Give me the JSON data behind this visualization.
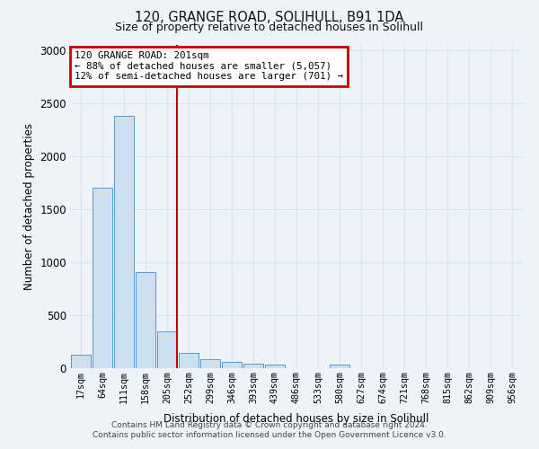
{
  "title1": "120, GRANGE ROAD, SOLIHULL, B91 1DA",
  "title2": "Size of property relative to detached houses in Solihull",
  "xlabel": "Distribution of detached houses by size in Solihull",
  "ylabel": "Number of detached properties",
  "bin_labels": [
    "17sqm",
    "64sqm",
    "111sqm",
    "158sqm",
    "205sqm",
    "252sqm",
    "299sqm",
    "346sqm",
    "393sqm",
    "439sqm",
    "486sqm",
    "533sqm",
    "580sqm",
    "627sqm",
    "674sqm",
    "721sqm",
    "768sqm",
    "815sqm",
    "862sqm",
    "909sqm",
    "956sqm"
  ],
  "bar_values": [
    130,
    1700,
    2380,
    910,
    350,
    145,
    85,
    60,
    45,
    30,
    0,
    0,
    30,
    0,
    0,
    0,
    0,
    0,
    0,
    0,
    0
  ],
  "bar_color": "#cce0f0",
  "bar_edge_color": "#5599cc",
  "vline_idx": 4,
  "vline_color": "#cc0000",
  "annotation_line1": "120 GRANGE ROAD: 201sqm",
  "annotation_line2": "← 88% of detached houses are smaller (5,057)",
  "annotation_line3": "12% of semi-detached houses are larger (701) →",
  "annotation_box_edgecolor": "#cc0000",
  "ylim": [
    0,
    3050
  ],
  "yticks": [
    0,
    500,
    1000,
    1500,
    2000,
    2500,
    3000
  ],
  "footer1": "Contains HM Land Registry data © Crown copyright and database right 2024.",
  "footer2": "Contains public sector information licensed under the Open Government Licence v3.0.",
  "bg_color": "#eef3fa",
  "grid_color": "#d8e4f0",
  "plot_bg_color": "#eef3fa"
}
